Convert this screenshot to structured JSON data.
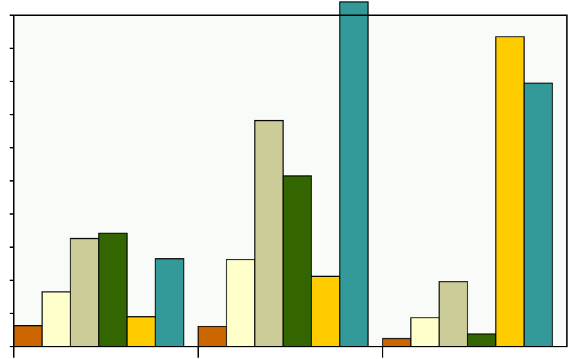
{
  "chart_data": {
    "type": "bar",
    "title": "",
    "xlabel": "",
    "ylabel": "",
    "categories": [
      "",
      "",
      ""
    ],
    "ylim": [
      0,
      10
    ],
    "y_ticks": [
      0,
      1,
      2,
      3,
      4,
      5,
      6,
      7,
      8,
      9,
      10
    ],
    "grid": false,
    "legend": "none",
    "series": [
      {
        "color": "#cc6600",
        "values": [
          0.63,
          0.61,
          0.24
        ]
      },
      {
        "color": "#ffffcc",
        "values": [
          1.65,
          2.63,
          0.87
        ]
      },
      {
        "color": "#cccc99",
        "values": [
          3.26,
          6.82,
          1.96
        ]
      },
      {
        "color": "#336600",
        "values": [
          3.42,
          5.15,
          0.38
        ]
      },
      {
        "color": "#ffcc00",
        "values": [
          0.9,
          2.12,
          9.35
        ]
      },
      {
        "color": "#339999",
        "values": [
          2.65,
          10.4,
          7.95
        ]
      }
    ],
    "colors": {
      "plot_background": "#f9fbf9",
      "axis": "#000000",
      "bar_outline": "#000000"
    }
  }
}
